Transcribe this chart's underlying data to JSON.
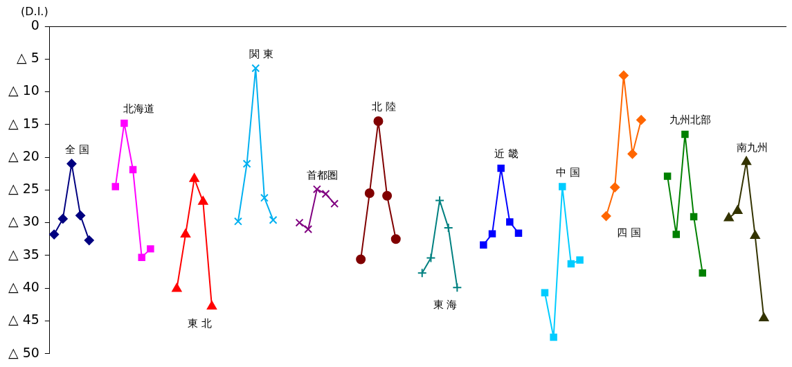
{
  "chart_data": {
    "type": "line",
    "ylabel": "(D.I.)",
    "categories": [
      null,
      null,
      null,
      null,
      null,
      null,
      null,
      null,
      null,
      null,
      null,
      null,
      null,
      null,
      null,
      null,
      null,
      null,
      null,
      null,
      null,
      null,
      null,
      null,
      null,
      null,
      null,
      null,
      null,
      null,
      null,
      null,
      null,
      null,
      null,
      null,
      null,
      null,
      null,
      null,
      null,
      null,
      null,
      null,
      null,
      null,
      null,
      null,
      null,
      null,
      null,
      null,
      null,
      null,
      null,
      null,
      null,
      null,
      null,
      null,
      null,
      null,
      null,
      null,
      null,
      null,
      null,
      null,
      null,
      null,
      null,
      null,
      null,
      null,
      null,
      null,
      null,
      null,
      null,
      null,
      null,
      null,
      null,
      null
    ],
    "ylim": [
      -50,
      0
    ],
    "yticks": [
      0,
      {
        "value": -5,
        "label": "△ 5"
      },
      {
        "value": -10,
        "label": "△ 10"
      },
      {
        "value": -15,
        "label": "△ 15"
      },
      {
        "value": -20,
        "label": "△ 20"
      },
      {
        "value": -25,
        "label": "△ 25"
      },
      {
        "value": -30,
        "label": "△ 30"
      },
      {
        "value": -35,
        "label": "△ 35"
      },
      {
        "value": -40,
        "label": "△ 40"
      },
      {
        "value": -45,
        "label": "△ 45"
      },
      {
        "value": -50,
        "label": "△ 50"
      }
    ],
    "grid": false,
    "legend": false,
    "tick_labels": "y",
    "series": [
      {
        "name": "全 国",
        "color": "#000080",
        "marker": "diamond",
        "values": [
          -31.8,
          -29.4,
          -21.0,
          -28.9,
          -32.7,
          null,
          null,
          null,
          null,
          null,
          null,
          null,
          null,
          null,
          null,
          null,
          null,
          null,
          null,
          null,
          null,
          null,
          null,
          null,
          null,
          null,
          null,
          null,
          null,
          null,
          null,
          null,
          null,
          null,
          null,
          null,
          null,
          null,
          null,
          null,
          null,
          null,
          null,
          null,
          null,
          null,
          null,
          null,
          null,
          null,
          null,
          null,
          null,
          null,
          null,
          null,
          null,
          null,
          null,
          null,
          null,
          null,
          null,
          null,
          null,
          null,
          null,
          null,
          null,
          null,
          null,
          null,
          null,
          null,
          null,
          null,
          null,
          null,
          null,
          null,
          null,
          null,
          null,
          null
        ]
      },
      {
        "name": "北海道",
        "color": "#ff00ff",
        "marker": "square",
        "values": [
          null,
          null,
          null,
          null,
          null,
          null,
          null,
          -24.5,
          -14.8,
          -21.9,
          -35.3,
          -34.0,
          null,
          null,
          null,
          null,
          null,
          null,
          null,
          null,
          null,
          null,
          null,
          null,
          null,
          null,
          null,
          null,
          null,
          null,
          null,
          null,
          null,
          null,
          null,
          null,
          null,
          null,
          null,
          null,
          null,
          null,
          null,
          null,
          null,
          null,
          null,
          null,
          null,
          null,
          null,
          null,
          null,
          null,
          null,
          null,
          null,
          null,
          null,
          null,
          null,
          null,
          null,
          null,
          null,
          null,
          null,
          null,
          null,
          null,
          null,
          null,
          null,
          null,
          null,
          null,
          null,
          null,
          null,
          null,
          null,
          null,
          null,
          null
        ]
      },
      {
        "name": "東 北",
        "color": "#ff0000",
        "marker": "triangle",
        "values": [
          null,
          null,
          null,
          null,
          null,
          null,
          null,
          null,
          null,
          null,
          null,
          null,
          null,
          null,
          -40.1,
          -31.8,
          -23.3,
          -26.8,
          -42.8,
          null,
          null,
          null,
          null,
          null,
          null,
          null,
          null,
          null,
          null,
          null,
          null,
          null,
          null,
          null,
          null,
          null,
          null,
          null,
          null,
          null,
          null,
          null,
          null,
          null,
          null,
          null,
          null,
          null,
          null,
          null,
          null,
          null,
          null,
          null,
          null,
          null,
          null,
          null,
          null,
          null,
          null,
          null,
          null,
          null,
          null,
          null,
          null,
          null,
          null,
          null,
          null,
          null,
          null,
          null,
          null,
          null,
          null,
          null,
          null,
          null,
          null,
          null,
          null,
          null
        ]
      },
      {
        "name": "関 東",
        "color": "#00b0f0",
        "marker": "cross",
        "values": [
          null,
          null,
          null,
          null,
          null,
          null,
          null,
          null,
          null,
          null,
          null,
          null,
          null,
          null,
          null,
          null,
          null,
          null,
          null,
          null,
          null,
          -29.8,
          -21.0,
          -6.4,
          -26.2,
          -29.6,
          null,
          null,
          null,
          null,
          null,
          null,
          null,
          null,
          null,
          null,
          null,
          null,
          null,
          null,
          null,
          null,
          null,
          null,
          null,
          null,
          null,
          null,
          null,
          null,
          null,
          null,
          null,
          null,
          null,
          null,
          null,
          null,
          null,
          null,
          null,
          null,
          null,
          null,
          null,
          null,
          null,
          null,
          null,
          null,
          null,
          null,
          null,
          null,
          null,
          null,
          null,
          null,
          null,
          null,
          null,
          null,
          null,
          null
        ]
      },
      {
        "name": "首都圏",
        "color": "#800080",
        "marker": "cross",
        "values": [
          null,
          null,
          null,
          null,
          null,
          null,
          null,
          null,
          null,
          null,
          null,
          null,
          null,
          null,
          null,
          null,
          null,
          null,
          null,
          null,
          null,
          null,
          null,
          null,
          null,
          null,
          null,
          null,
          -30.0,
          -31.0,
          -24.9,
          -25.6,
          -27.1,
          null,
          null,
          null,
          null,
          null,
          null,
          null,
          null,
          null,
          null,
          null,
          null,
          null,
          null,
          null,
          null,
          null,
          null,
          null,
          null,
          null,
          null,
          null,
          null,
          null,
          null,
          null,
          null,
          null,
          null,
          null,
          null,
          null,
          null,
          null,
          null,
          null,
          null,
          null,
          null,
          null,
          null,
          null,
          null,
          null,
          null,
          null,
          null,
          null,
          null,
          null
        ]
      },
      {
        "name": "北 陸",
        "color": "#800000",
        "marker": "circle",
        "values": [
          null,
          null,
          null,
          null,
          null,
          null,
          null,
          null,
          null,
          null,
          null,
          null,
          null,
          null,
          null,
          null,
          null,
          null,
          null,
          null,
          null,
          null,
          null,
          null,
          null,
          null,
          null,
          null,
          null,
          null,
          null,
          null,
          null,
          null,
          null,
          -35.6,
          -25.5,
          -14.5,
          -25.9,
          -32.5,
          null,
          null,
          null,
          null,
          null,
          null,
          null,
          null,
          null,
          null,
          null,
          null,
          null,
          null,
          null,
          null,
          null,
          null,
          null,
          null,
          null,
          null,
          null,
          null,
          null,
          null,
          null,
          null,
          null,
          null,
          null,
          null,
          null,
          null,
          null,
          null,
          null,
          null,
          null,
          null,
          null,
          null,
          null,
          null
        ]
      },
      {
        "name": "東 海",
        "color": "#008080",
        "marker": "plus",
        "values": [
          null,
          null,
          null,
          null,
          null,
          null,
          null,
          null,
          null,
          null,
          null,
          null,
          null,
          null,
          null,
          null,
          null,
          null,
          null,
          null,
          null,
          null,
          null,
          null,
          null,
          null,
          null,
          null,
          null,
          null,
          null,
          null,
          null,
          null,
          null,
          null,
          null,
          null,
          null,
          null,
          null,
          null,
          -37.7,
          -35.4,
          -26.6,
          -30.8,
          -39.9,
          null,
          null,
          null,
          null,
          null,
          null,
          null,
          null,
          null,
          null,
          null,
          null,
          null,
          null,
          null,
          null,
          null,
          null,
          null,
          null,
          null,
          null,
          null,
          null,
          null,
          null,
          null,
          null,
          null,
          null,
          null,
          null,
          null,
          null,
          null,
          null,
          null
        ]
      },
      {
        "name": "近 畿",
        "color": "#0000ff",
        "marker": "square",
        "values": [
          null,
          null,
          null,
          null,
          null,
          null,
          null,
          null,
          null,
          null,
          null,
          null,
          null,
          null,
          null,
          null,
          null,
          null,
          null,
          null,
          null,
          null,
          null,
          null,
          null,
          null,
          null,
          null,
          null,
          null,
          null,
          null,
          null,
          null,
          null,
          null,
          null,
          null,
          null,
          null,
          null,
          null,
          null,
          null,
          null,
          null,
          null,
          null,
          null,
          -33.4,
          -31.7,
          -21.7,
          -29.9,
          -31.6,
          null,
          null,
          null,
          null,
          null,
          null,
          null,
          null,
          null,
          null,
          null,
          null,
          null,
          null,
          null,
          null,
          null,
          null,
          null,
          null,
          null,
          null,
          null,
          null,
          null,
          null,
          null,
          null,
          null,
          null
        ]
      },
      {
        "name": "中 国",
        "color": "#00ccff",
        "marker": "square",
        "values": [
          null,
          null,
          null,
          null,
          null,
          null,
          null,
          null,
          null,
          null,
          null,
          null,
          null,
          null,
          null,
          null,
          null,
          null,
          null,
          null,
          null,
          null,
          null,
          null,
          null,
          null,
          null,
          null,
          null,
          null,
          null,
          null,
          null,
          null,
          null,
          null,
          null,
          null,
          null,
          null,
          null,
          null,
          null,
          null,
          null,
          null,
          null,
          null,
          null,
          null,
          null,
          null,
          null,
          null,
          null,
          null,
          -40.7,
          -47.5,
          -24.5,
          -36.3,
          -35.7,
          null,
          null,
          null,
          null,
          null,
          null,
          null,
          null,
          null,
          null,
          null,
          null,
          null,
          null,
          null,
          null,
          null,
          null,
          null,
          null,
          null,
          null,
          null
        ]
      },
      {
        "name": "四 国",
        "color": "#ff6600",
        "marker": "diamond",
        "values": [
          null,
          null,
          null,
          null,
          null,
          null,
          null,
          null,
          null,
          null,
          null,
          null,
          null,
          null,
          null,
          null,
          null,
          null,
          null,
          null,
          null,
          null,
          null,
          null,
          null,
          null,
          null,
          null,
          null,
          null,
          null,
          null,
          null,
          null,
          null,
          null,
          null,
          null,
          null,
          null,
          null,
          null,
          null,
          null,
          null,
          null,
          null,
          null,
          null,
          null,
          null,
          null,
          null,
          null,
          null,
          null,
          null,
          null,
          null,
          null,
          null,
          null,
          null,
          -29.0,
          -24.6,
          -7.5,
          -19.5,
          -14.3,
          null,
          null,
          null,
          null,
          null,
          null,
          null,
          null,
          null,
          null,
          null,
          null,
          null,
          null,
          null,
          null
        ]
      },
      {
        "name": "九州北部",
        "color": "#008000",
        "marker": "square",
        "values": [
          null,
          null,
          null,
          null,
          null,
          null,
          null,
          null,
          null,
          null,
          null,
          null,
          null,
          null,
          null,
          null,
          null,
          null,
          null,
          null,
          null,
          null,
          null,
          null,
          null,
          null,
          null,
          null,
          null,
          null,
          null,
          null,
          null,
          null,
          null,
          null,
          null,
          null,
          null,
          null,
          null,
          null,
          null,
          null,
          null,
          null,
          null,
          null,
          null,
          null,
          null,
          null,
          null,
          null,
          null,
          null,
          null,
          null,
          null,
          null,
          null,
          null,
          null,
          null,
          null,
          null,
          null,
          null,
          null,
          null,
          -22.9,
          -31.8,
          -16.5,
          -29.1,
          -37.7,
          null,
          null,
          null,
          null,
          null,
          null,
          null,
          null,
          null
        ]
      },
      {
        "name": "南九州",
        "color": "#333300",
        "marker": "triangle",
        "values": [
          null,
          null,
          null,
          null,
          null,
          null,
          null,
          null,
          null,
          null,
          null,
          null,
          null,
          null,
          null,
          null,
          null,
          null,
          null,
          null,
          null,
          null,
          null,
          null,
          null,
          null,
          null,
          null,
          null,
          null,
          null,
          null,
          null,
          null,
          null,
          null,
          null,
          null,
          null,
          null,
          null,
          null,
          null,
          null,
          null,
          null,
          null,
          null,
          null,
          null,
          null,
          null,
          null,
          null,
          null,
          null,
          null,
          null,
          null,
          null,
          null,
          null,
          null,
          null,
          null,
          null,
          null,
          null,
          null,
          null,
          null,
          null,
          null,
          null,
          null,
          null,
          null,
          -29.3,
          -28.2,
          -20.7,
          -32.0,
          -44.6,
          null,
          null
        ]
      }
    ]
  }
}
